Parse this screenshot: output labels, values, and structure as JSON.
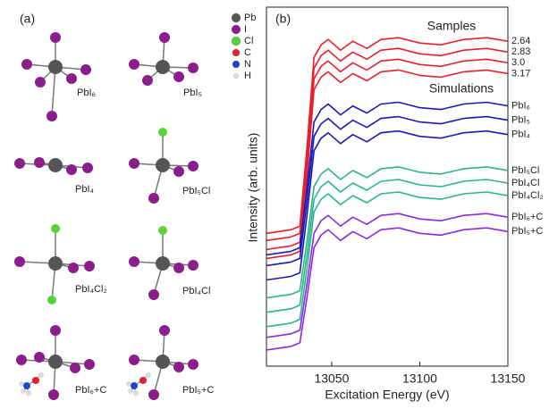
{
  "panel_a": {
    "label": "(a)",
    "legend": [
      "Pb",
      "I",
      "Cl",
      "C",
      "N",
      "H"
    ],
    "structures": [
      "PbI₆",
      "PbI₅",
      "PbI₄",
      "PbI₅Cl",
      "PbI₄Cl₂",
      "PbI₄Cl",
      "PbI₆+C",
      "PbI₅+C"
    ]
  },
  "chart_data": {
    "type": "line",
    "panel_label": "(b)",
    "x_label": "Excitation Energy (eV)",
    "y_label": "Intensity (arb. units)",
    "annotations": [
      "Samples",
      "Simulations"
    ],
    "x": [
      13013,
      13020,
      13027,
      13032,
      13036,
      13040,
      13044,
      13048,
      13055,
      13062,
      13070,
      13078,
      13088,
      13100,
      13112,
      13125,
      13138,
      13150
    ],
    "xlim": [
      13013,
      13150
    ],
    "xticks": [
      13050,
      13100,
      13150
    ],
    "ylim": [
      0,
      100
    ],
    "series": [
      {
        "name": "2.64",
        "color": "#e8202a",
        "values": [
          37,
          37.5,
          38,
          39,
          61,
          86,
          89.5,
          91,
          88,
          90.5,
          88.5,
          91,
          91.5,
          90,
          89.5,
          91,
          91.5,
          90.5
        ]
      },
      {
        "name": "2.83",
        "color": "#e8202a",
        "values": [
          35,
          35.5,
          36,
          37,
          58.4,
          83,
          86.5,
          88,
          85,
          87.5,
          85.5,
          88,
          88.5,
          87,
          86.5,
          88,
          88.5,
          87.5
        ]
      },
      {
        "name": "3.0",
        "color": "#e8202a",
        "values": [
          32.5,
          33,
          33.5,
          34.5,
          55.9,
          80,
          83.5,
          85,
          82,
          84.5,
          82.5,
          85,
          85.5,
          84,
          83.5,
          85,
          85.5,
          84.5
        ]
      },
      {
        "name": "3.17",
        "color": "#e8202a",
        "values": [
          30,
          30.5,
          31,
          32,
          53,
          77,
          80.5,
          82,
          79,
          81.5,
          79.5,
          82,
          82.5,
          81,
          80.5,
          82,
          82.5,
          81.5
        ]
      },
      {
        "name": "PbI₆",
        "color": "#1a1ab8",
        "values": [
          31,
          31.5,
          32,
          33,
          49.5,
          68,
          71.5,
          73,
          70,
          72.5,
          70.5,
          73,
          73.5,
          72,
          71.5,
          73,
          73.5,
          72.5
        ]
      },
      {
        "name": "PbI₅",
        "color": "#1a1ab8",
        "values": [
          28,
          28.5,
          29,
          30,
          46,
          64,
          67.5,
          69,
          66,
          68.5,
          66.5,
          69,
          69.5,
          68,
          67.5,
          69,
          69.5,
          68.5
        ]
      },
      {
        "name": "PbI₄",
        "color": "#1a1ab8",
        "values": [
          24,
          24.5,
          25,
          26,
          42,
          60,
          63.5,
          65,
          62,
          64.5,
          62.5,
          65,
          65.5,
          64,
          63.5,
          65,
          65.5,
          64.5
        ]
      },
      {
        "name": "PbI₅Cl",
        "color": "#2bb58c",
        "values": [
          19,
          19.5,
          20,
          21,
          34.8,
          50,
          53.5,
          55,
          52,
          54.5,
          52.5,
          55,
          55.5,
          54,
          53.5,
          55,
          55.5,
          54.5
        ]
      },
      {
        "name": "PbI₄Cl",
        "color": "#2bb58c",
        "values": [
          15,
          15.5,
          16,
          17,
          31,
          46.5,
          50,
          51.5,
          48.5,
          51,
          49,
          51.5,
          52,
          50.5,
          50,
          51.5,
          52,
          51
        ]
      },
      {
        "name": "PbI₄Cl₂",
        "color": "#2bb58c",
        "values": [
          11,
          11.5,
          12,
          13,
          27.2,
          43,
          46.5,
          48,
          45,
          47.5,
          45.5,
          48,
          48.5,
          47,
          46.5,
          48,
          48.5,
          47.5
        ]
      },
      {
        "name": "PbI₆+C",
        "color": "#8a2be2",
        "values": [
          8,
          8.5,
          9,
          10,
          22.9,
          37,
          40.5,
          42,
          39,
          41.5,
          39.5,
          42,
          42.5,
          41,
          40.5,
          42,
          42.5,
          41.5
        ]
      },
      {
        "name": "PbI₅+C",
        "color": "#8a2be2",
        "values": [
          4.5,
          5,
          5.5,
          6.5,
          19.1,
          33,
          36.5,
          38,
          35,
          37.5,
          35.5,
          38,
          38.5,
          37,
          36.5,
          38,
          38.5,
          37.5
        ]
      }
    ]
  }
}
